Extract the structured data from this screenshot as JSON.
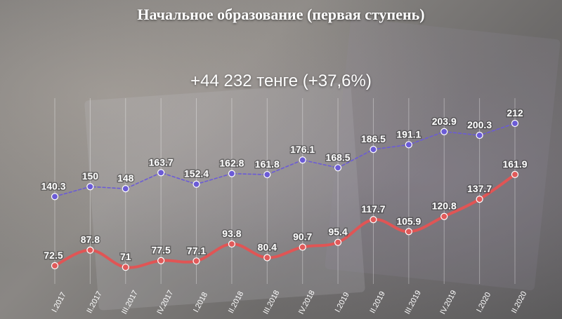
{
  "title": "Начальное образование (первая ступень)",
  "subtitle": "+44 232 тенге (+37,6%)",
  "chart_data": {
    "type": "line",
    "categories": [
      "I.2017",
      "II.2017",
      "III.2017",
      "IV.2017",
      "I.2018",
      "II.2018",
      "III.2018",
      "IV.2018",
      "I.2019",
      "II.2019",
      "III.2019",
      "IV.2019",
      "I.2020",
      "II.2020"
    ],
    "series": [
      {
        "values": [
          140.3,
          150,
          148,
          163.7,
          152.4,
          162.8,
          161.8,
          176.1,
          168.5,
          186.5,
          191.1,
          203.9,
          200.3,
          212
        ],
        "color": "#6b5bd6",
        "style": "dashed"
      },
      {
        "values": [
          72.5,
          87.8,
          71,
          77.5,
          77.1,
          93.8,
          80.4,
          90.7,
          95.4,
          117.7,
          105.9,
          120.8,
          137.7,
          161.9
        ],
        "color": "#e05555",
        "style": "solid"
      }
    ],
    "grid": true,
    "legend": "none"
  }
}
